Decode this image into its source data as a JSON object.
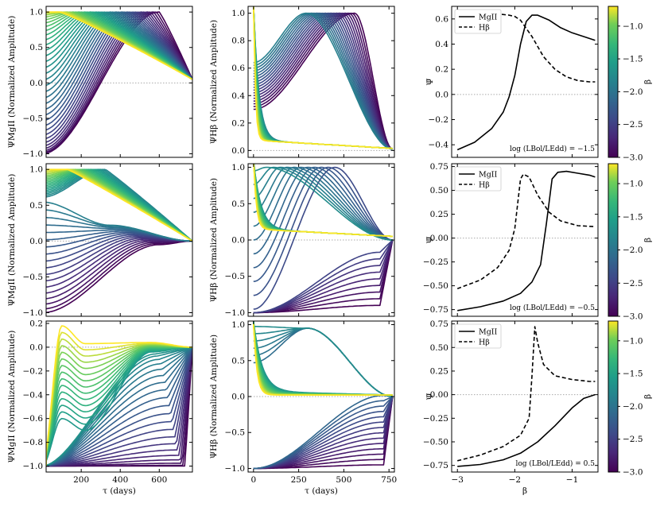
{
  "figure": {
    "left_ylabel": "ΨMgII (Normalized Amplitude)",
    "mid_ylabel": "ΨHβ (Normalized Amplitude)",
    "right_ylabel": "Ψ̄",
    "tau_xlabel": "τ (days)",
    "beta_xlabel": "β",
    "colorbar_label": "β",
    "colorbar_ticks": [
      "−1.0",
      "−1.5",
      "−2.0",
      "−2.5",
      "−3.0"
    ],
    "legend": [
      "MgII",
      "Hβ"
    ],
    "annotations": [
      "log (LBol/LEdd) = −1.5",
      "log (LBol/LEdd) = −0.5",
      "log (LBol/LEdd) = 0.5"
    ]
  },
  "chart_data": [
    {
      "type": "line",
      "panel": "row1-MgII",
      "xlabel": "",
      "ylabel": "ΨMgII (Normalized Amplitude)",
      "xlim": [
        20,
        770
      ],
      "ylim": [
        -1.05,
        1.08
      ],
      "yticks": [
        "−1.0",
        "−0.5",
        "0.0",
        "0.5",
        "1.0"
      ],
      "xticks": [],
      "series_note": "family of curves colored by β from −3.0 to −0.7",
      "ncurves": 36,
      "start_values": [
        -1.0,
        1.0
      ],
      "end_value": 0.05,
      "peak_tau_range": [
        90,
        600
      ]
    },
    {
      "type": "line",
      "panel": "row1-Hbeta",
      "xlabel": "",
      "ylabel": "ΨHβ (Normalized Amplitude)",
      "xlim": [
        -30,
        780
      ],
      "ylim": [
        -0.05,
        1.05
      ],
      "yticks": [
        "0.0",
        "0.2",
        "0.4",
        "0.6",
        "0.8",
        "1.0"
      ],
      "xticks": [],
      "ncurves": 36,
      "end_value": 0.0
    },
    {
      "type": "line",
      "panel": "row1-mean",
      "ylabel": "Ψ̄",
      "xlim": [
        -3.1,
        -0.55
      ],
      "ylim": [
        -0.5,
        0.7
      ],
      "yticks": [
        "−0.4",
        "−0.2",
        "0.0",
        "0.2",
        "0.4",
        "0.6"
      ],
      "xticks": [],
      "series": [
        {
          "name": "MgII",
          "x": [
            -3.0,
            -2.7,
            -2.4,
            -2.2,
            -2.1,
            -2.0,
            -1.9,
            -1.8,
            -1.7,
            -1.6,
            -1.4,
            -1.2,
            -1.0,
            -0.8,
            -0.6
          ],
          "values": [
            -0.44,
            -0.38,
            -0.27,
            -0.14,
            -0.02,
            0.15,
            0.4,
            0.58,
            0.63,
            0.63,
            0.59,
            0.53,
            0.49,
            0.46,
            0.43
          ]
        },
        {
          "name": "Hβ",
          "x": [
            -3.0,
            -2.6,
            -2.3,
            -2.1,
            -2.0,
            -1.9,
            -1.7,
            -1.5,
            -1.3,
            -1.1,
            -0.9,
            -0.7,
            -0.6
          ],
          "values": [
            0.64,
            0.65,
            0.64,
            0.63,
            0.62,
            0.59,
            0.46,
            0.3,
            0.2,
            0.14,
            0.11,
            0.1,
            0.1
          ]
        }
      ],
      "annotation": "log (LBol/LEdd) = −1.5"
    },
    {
      "type": "line",
      "panel": "row2-MgII",
      "xlabel": "",
      "ylabel": "ΨMgII (Normalized Amplitude)",
      "xlim": [
        20,
        770
      ],
      "ylim": [
        -1.05,
        1.08
      ],
      "yticks": [
        "−1.0",
        "−0.5",
        "0.0",
        "0.5",
        "1.0"
      ],
      "xticks": [],
      "ncurves": 36
    },
    {
      "type": "line",
      "panel": "row2-Hbeta",
      "xlabel": "",
      "ylabel": "ΨHβ (Normalized Amplitude)",
      "xlim": [
        -30,
        780
      ],
      "ylim": [
        -1.05,
        1.05
      ],
      "yticks": [
        "−1.0",
        "−0.5",
        "0.0",
        "0.5",
        "1.0"
      ],
      "xticks": [],
      "ncurves": 36
    },
    {
      "type": "line",
      "panel": "row2-mean",
      "ylabel": "Ψ̄",
      "xlim": [
        -3.1,
        -0.55
      ],
      "ylim": [
        -0.82,
        0.78
      ],
      "yticks": [
        "−0.75",
        "−0.50",
        "−0.25",
        "0.00",
        "0.25",
        "0.50",
        "0.75"
      ],
      "xticks": [],
      "series": [
        {
          "name": "MgII",
          "x": [
            -3.0,
            -2.6,
            -2.2,
            -1.9,
            -1.7,
            -1.55,
            -1.45,
            -1.35,
            -1.25,
            -1.1,
            -0.9,
            -0.7,
            -0.6
          ],
          "values": [
            -0.76,
            -0.72,
            -0.66,
            -0.58,
            -0.46,
            -0.28,
            0.15,
            0.62,
            0.69,
            0.7,
            0.68,
            0.66,
            0.64
          ]
        },
        {
          "name": "Hβ",
          "x": [
            -3.0,
            -2.6,
            -2.3,
            -2.1,
            -2.0,
            -1.9,
            -1.85,
            -1.75,
            -1.6,
            -1.4,
            -1.2,
            -0.9,
            -0.6
          ],
          "values": [
            -0.53,
            -0.44,
            -0.31,
            -0.13,
            0.1,
            0.62,
            0.67,
            0.64,
            0.45,
            0.27,
            0.18,
            0.13,
            0.12
          ]
        }
      ],
      "annotation": "log (LBol/LEdd) = −0.5"
    },
    {
      "type": "line",
      "panel": "row3-MgII",
      "xlabel": "τ (days)",
      "ylabel": "ΨMgII (Normalized Amplitude)",
      "xlim": [
        20,
        770
      ],
      "ylim": [
        -1.05,
        0.22
      ],
      "yticks": [
        "−1.0",
        "−0.8",
        "−0.6",
        "−0.4",
        "−0.2",
        "0.0",
        "0.2"
      ],
      "xticks": [
        "200",
        "400",
        "600"
      ],
      "ncurves": 36
    },
    {
      "type": "line",
      "panel": "row3-Hbeta",
      "xlabel": "τ (days)",
      "ylabel": "ΨHβ (Normalized Amplitude)",
      "xlim": [
        -30,
        780
      ],
      "ylim": [
        -1.05,
        1.05
      ],
      "yticks": [
        "−1.0",
        "−0.5",
        "0.0",
        "0.5",
        "1.0"
      ],
      "xticks": [
        "0",
        "250",
        "500",
        "750"
      ],
      "ncurves": 36
    },
    {
      "type": "line",
      "panel": "row3-mean",
      "xlabel": "β",
      "ylabel": "Ψ̄",
      "xlim": [
        -3.1,
        -0.55
      ],
      "ylim": [
        -0.82,
        0.78
      ],
      "yticks": [
        "−0.75",
        "−0.50",
        "−0.25",
        "0.00",
        "0.25",
        "0.50",
        "0.75"
      ],
      "xticks": [
        "−3",
        "−2",
        "−1"
      ],
      "series": [
        {
          "name": "MgII",
          "x": [
            -3.0,
            -2.6,
            -2.2,
            -1.9,
            -1.6,
            -1.3,
            -1.0,
            -0.8,
            -0.6
          ],
          "values": [
            -0.76,
            -0.74,
            -0.69,
            -0.62,
            -0.5,
            -0.33,
            -0.14,
            -0.04,
            0.0
          ]
        },
        {
          "name": "Hβ",
          "x": [
            -3.0,
            -2.6,
            -2.2,
            -1.9,
            -1.75,
            -1.7,
            -1.65,
            -1.6,
            -1.5,
            -1.3,
            -1.0,
            -0.7,
            -0.6
          ],
          "values": [
            -0.7,
            -0.64,
            -0.55,
            -0.43,
            -0.25,
            0.2,
            0.72,
            0.55,
            0.32,
            0.2,
            0.16,
            0.14,
            0.14
          ]
        }
      ],
      "annotation": "log (LBol/LEdd) = 0.5"
    }
  ]
}
